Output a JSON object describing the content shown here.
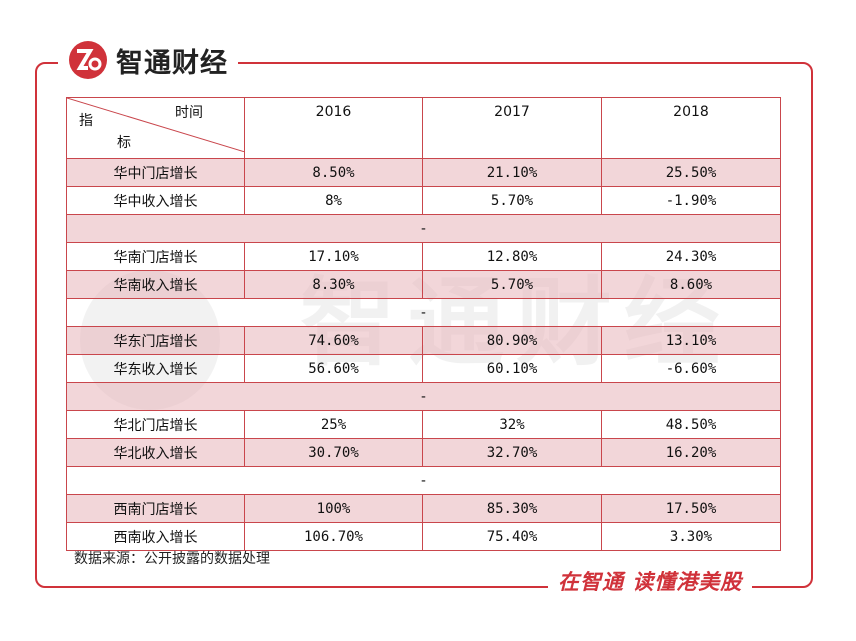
{
  "header": {
    "brand": "智通财经"
  },
  "watermark": "智通财经",
  "table": {
    "corner": {
      "top": "时间",
      "left": "指",
      "bottom": "标"
    },
    "columns": [
      "2016",
      "2017",
      "2018"
    ],
    "rows": [
      [
        "华中门店增长",
        "8.50%",
        "21.10%",
        "25.50%"
      ],
      [
        "华中收入增长",
        "8%",
        "5.70%",
        "-1.90%"
      ],
      [
        "-"
      ],
      [
        "华南门店增长",
        "17.10%",
        "12.80%",
        "24.30%"
      ],
      [
        "华南收入增长",
        "8.30%",
        "5.70%",
        "8.60%"
      ],
      [
        "-"
      ],
      [
        "华东门店增长",
        "74.60%",
        "80.90%",
        "13.10%"
      ],
      [
        "华东收入增长",
        "56.60%",
        "60.10%",
        "-6.60%"
      ],
      [
        "-"
      ],
      [
        "华北门店增长",
        "25%",
        "32%",
        "48.50%"
      ],
      [
        "华北收入增长",
        "30.70%",
        "32.70%",
        "16.20%"
      ],
      [
        "-"
      ],
      [
        "西南门店增长",
        "100%",
        "85.30%",
        "17.50%"
      ],
      [
        "西南收入增长",
        "106.70%",
        "75.40%",
        "3.30%"
      ]
    ]
  },
  "source": "数据来源：公开披露的数据处理",
  "footer": {
    "slogan": "在智通 读懂港美股"
  }
}
